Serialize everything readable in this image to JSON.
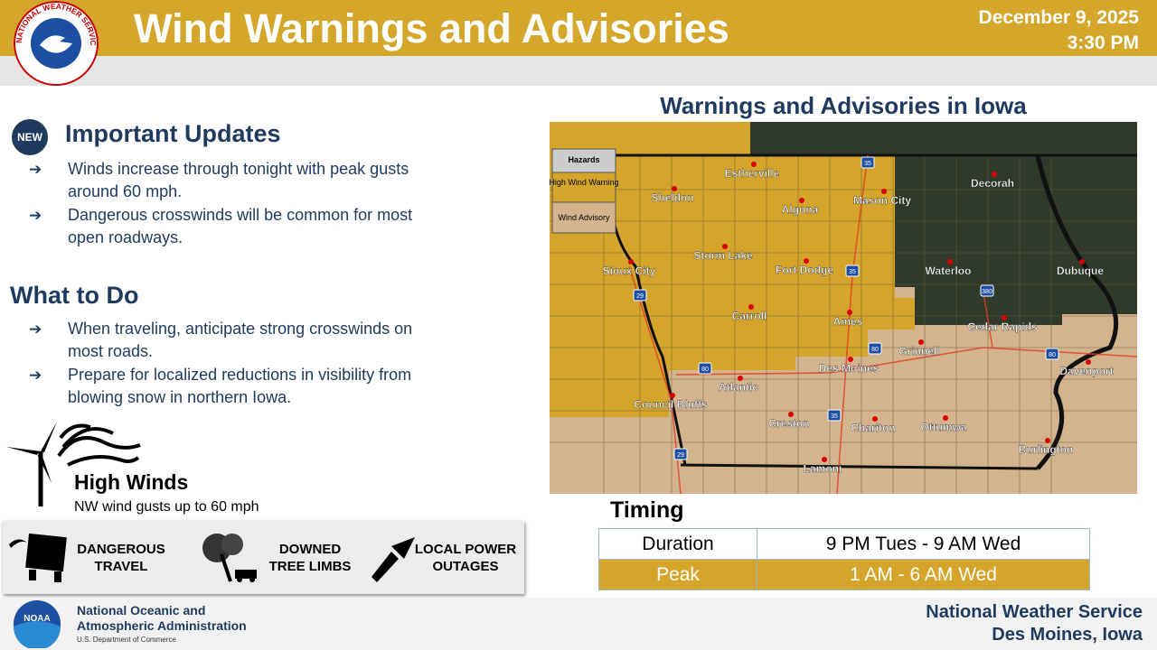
{
  "header": {
    "logo_text": "NATIONAL WEATHER SERVICE",
    "title": "Wind Warnings and Advisories",
    "date": "December 9, 2025",
    "time": "3:30 PM"
  },
  "updates": {
    "badge": "NEW",
    "heading": "Important Updates",
    "items": [
      "Winds increase through tonight with peak gusts around 60 mph.",
      "Dangerous crosswinds will be common for most open roadways."
    ]
  },
  "what_to_do": {
    "heading": "What to Do",
    "items": [
      "When traveling, anticipate strong crosswinds on most roads.",
      "Prepare for localized reductions in visibility from blowing snow in northern Iowa."
    ]
  },
  "high_winds": {
    "title": "High Winds",
    "detail": "NW wind gusts up to 60 mph"
  },
  "impacts": [
    "DANGEROUS TRAVEL",
    "DOWNED TREE LIMBS",
    "LOCAL POWER OUTAGES"
  ],
  "map": {
    "title": "Warnings and Advisories in Iowa",
    "legend": {
      "heading": "Hazards",
      "items": [
        "High Wind Warning",
        "Wind Advisory"
      ]
    },
    "cities": [
      "Estherville",
      "Sheldon",
      "Algona",
      "Mason City",
      "Decorah",
      "Storm Lake",
      "Fort Dodge",
      "Sioux City",
      "Waterloo",
      "Dubuque",
      "Carroll",
      "Ames",
      "Cedar Rapids",
      "Grinnell",
      "Des Moines",
      "Davenport",
      "Atlantic",
      "Council Bluffs",
      "Creston",
      "Chariton",
      "Ottumwa",
      "Burlington",
      "Lamoni"
    ],
    "highways": [
      "35",
      "35",
      "29",
      "380",
      "80",
      "80",
      "80",
      "35",
      "29"
    ]
  },
  "timing": {
    "heading": "Timing",
    "rows": [
      [
        "Duration",
        "9 PM Tues - 9 AM Wed"
      ],
      [
        "Peak",
        "1 AM - 6 AM Wed"
      ]
    ]
  },
  "footer": {
    "noaa": "NOAA",
    "agency": "National Oceanic and Atmospheric Administration",
    "department": "U.S. Department of Commerce",
    "office": "National Weather Service",
    "location": "Des Moines, Iowa"
  }
}
